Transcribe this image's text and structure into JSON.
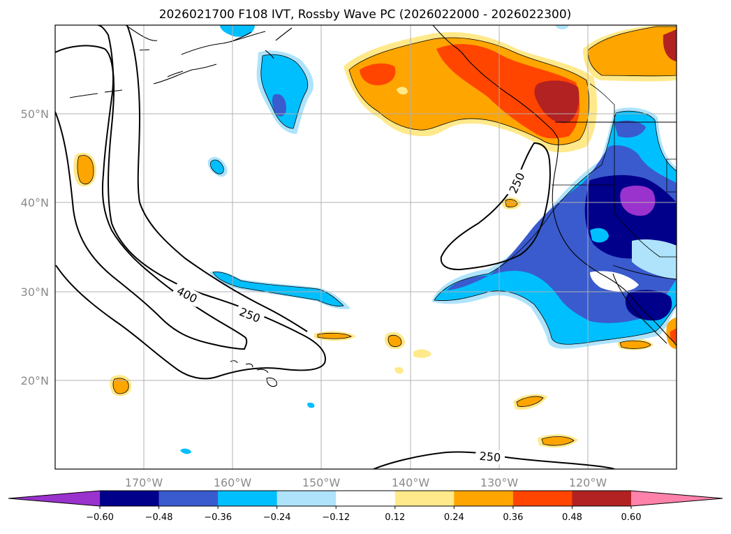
{
  "title": "2026021700 F108 IVT, Rossby Wave PC (2026022000 - 2026022300)",
  "axes": {
    "lon_ticks": [
      "170°W",
      "160°W",
      "150°W",
      "140°W",
      "130°W",
      "120°W"
    ],
    "lat_ticks": [
      "50°N",
      "40°N",
      "30°N",
      "20°N"
    ],
    "grid": true
  },
  "contours": {
    "labels": [
      "400",
      "250",
      "250",
      "250"
    ]
  },
  "colorbar": {
    "ticks": [
      "−0.60",
      "−0.48",
      "−0.36",
      "−0.24",
      "−0.12",
      "0.12",
      "0.24",
      "0.36",
      "0.48",
      "0.60"
    ],
    "colors": [
      "#9a32cd",
      "#00008b",
      "#3a5bcd",
      "#00bfff",
      "#aee3fb",
      "#ffffff",
      "#ffe98a",
      "#ffa500",
      "#ff4500",
      "#b22222",
      "#ff82ab"
    ],
    "extend": "both"
  }
}
